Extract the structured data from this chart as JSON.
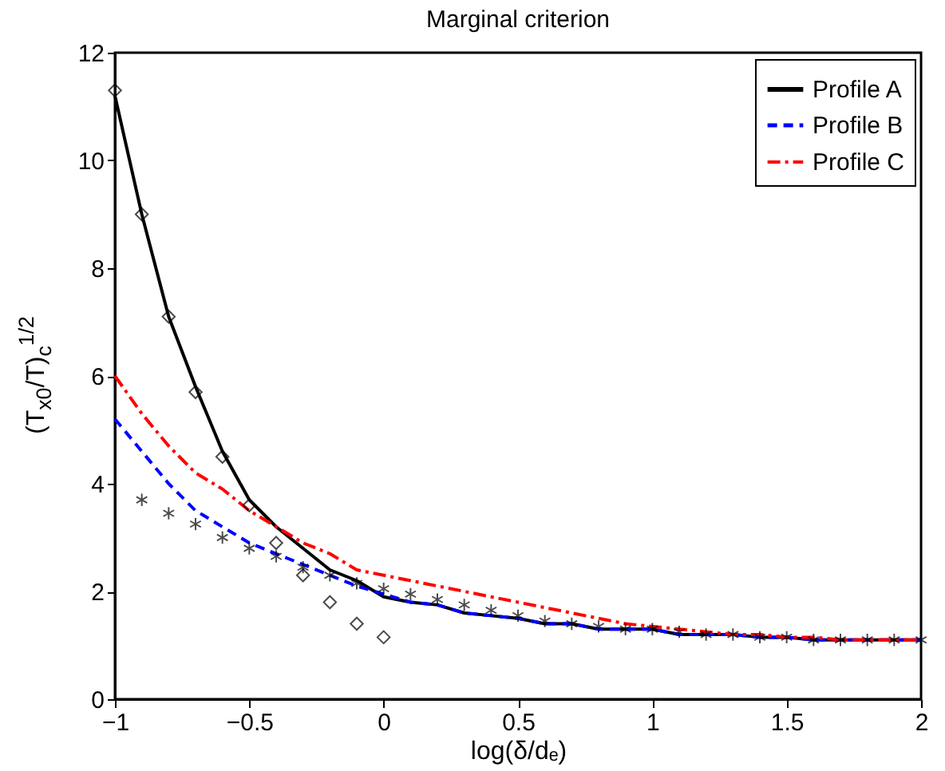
{
  "chart_data": {
    "type": "line",
    "title": "Marginal criterion",
    "xlabel": "log(δ/dₑ)",
    "ylabel": "(T$_{x0}$/T)$_{c}$$^{1/2}$",
    "xlim": [
      -1,
      2
    ],
    "ylim": [
      0,
      12
    ],
    "xticks": [
      -1,
      -0.5,
      0,
      0.5,
      1,
      1.5,
      2
    ],
    "yticks": [
      0,
      2,
      4,
      6,
      8,
      10,
      12
    ],
    "grid": false,
    "legend": "top right",
    "series": [
      {
        "name": "Profile A",
        "color": "#000000",
        "line_style": "solid",
        "x": [
          -1,
          -0.9,
          -0.8,
          -0.7,
          -0.6,
          -0.5,
          -0.4,
          -0.3,
          -0.2,
          -0.1,
          0,
          0.1,
          0.2,
          0.3,
          0.4,
          0.5,
          0.6,
          0.7,
          0.8,
          0.9,
          1,
          1.1,
          1.2,
          1.3,
          1.4,
          1.5,
          1.6,
          1.7,
          1.8,
          1.9,
          2
        ],
        "values": [
          11.2,
          9.0,
          7.1,
          5.8,
          4.6,
          3.7,
          3.2,
          2.8,
          2.4,
          2.2,
          1.9,
          1.8,
          1.75,
          1.6,
          1.55,
          1.5,
          1.4,
          1.4,
          1.3,
          1.3,
          1.3,
          1.2,
          1.2,
          1.2,
          1.15,
          1.15,
          1.1,
          1.1,
          1.1,
          1.1,
          1.1
        ]
      },
      {
        "name": "Profile B",
        "color": "#0000ff",
        "line_style": "dashed",
        "x": [
          -1,
          -0.9,
          -0.8,
          -0.7,
          -0.6,
          -0.5,
          -0.4,
          -0.3,
          -0.2,
          -0.1,
          0,
          0.1,
          0.2,
          0.3,
          0.4,
          0.5,
          0.6,
          0.7,
          0.8,
          0.9,
          1,
          1.1,
          1.2,
          1.3,
          1.4,
          1.5,
          1.6,
          1.7,
          1.8,
          1.9,
          2
        ],
        "values": [
          5.2,
          4.6,
          4.0,
          3.5,
          3.2,
          2.9,
          2.7,
          2.5,
          2.3,
          2.1,
          1.95,
          1.8,
          1.75,
          1.6,
          1.55,
          1.5,
          1.4,
          1.4,
          1.3,
          1.3,
          1.3,
          1.2,
          1.2,
          1.2,
          1.15,
          1.15,
          1.1,
          1.1,
          1.1,
          1.1,
          1.1
        ]
      },
      {
        "name": "Profile C",
        "color": "#ff0000",
        "line_style": "dashdot",
        "x": [
          -1,
          -0.9,
          -0.8,
          -0.7,
          -0.6,
          -0.5,
          -0.4,
          -0.3,
          -0.2,
          -0.1,
          0,
          0.1,
          0.2,
          0.3,
          0.4,
          0.5,
          0.6,
          0.7,
          0.8,
          0.9,
          1,
          1.1,
          1.2,
          1.3,
          1.4,
          1.5,
          1.6,
          1.7,
          1.8,
          1.9,
          2
        ],
        "values": [
          6.0,
          5.3,
          4.7,
          4.2,
          3.9,
          3.5,
          3.2,
          2.9,
          2.7,
          2.4,
          2.3,
          2.2,
          2.1,
          2.0,
          1.9,
          1.8,
          1.7,
          1.6,
          1.5,
          1.4,
          1.35,
          1.3,
          1.25,
          1.2,
          1.2,
          1.15,
          1.15,
          1.1,
          1.1,
          1.1,
          1.1
        ]
      },
      {
        "type": "scatter",
        "color": "#000000",
        "marker": "diamond",
        "x": [
          -1,
          -0.9,
          -0.8,
          -0.7,
          -0.6,
          -0.5,
          -0.4,
          -0.3,
          -0.2,
          -0.1,
          0
        ],
        "values": [
          11.3,
          9.0,
          7.1,
          5.7,
          4.5,
          3.6,
          2.9,
          2.3,
          1.8,
          1.4,
          1.15
        ]
      },
      {
        "type": "scatter",
        "color": "#000000",
        "marker": "cross",
        "x": [
          -0.9,
          -0.8,
          -0.7,
          -0.6,
          -0.5,
          -0.4,
          -0.3,
          -0.2,
          -0.1,
          0,
          0.1,
          0.2,
          0.3,
          0.4,
          0.5,
          0.6,
          0.7,
          0.8,
          0.9,
          1,
          1.1,
          1.2,
          1.3,
          1.4,
          1.5,
          1.6,
          1.7,
          1.8,
          1.9,
          2
        ],
        "values": [
          3.7,
          3.45,
          3.25,
          3.0,
          2.8,
          2.65,
          2.45,
          2.3,
          2.15,
          2.05,
          1.95,
          1.85,
          1.75,
          1.65,
          1.55,
          1.45,
          1.4,
          1.35,
          1.3,
          1.3,
          1.25,
          1.2,
          1.2,
          1.15,
          1.15,
          1.1,
          1.1,
          1.1,
          1.1,
          1.1
        ]
      }
    ]
  }
}
